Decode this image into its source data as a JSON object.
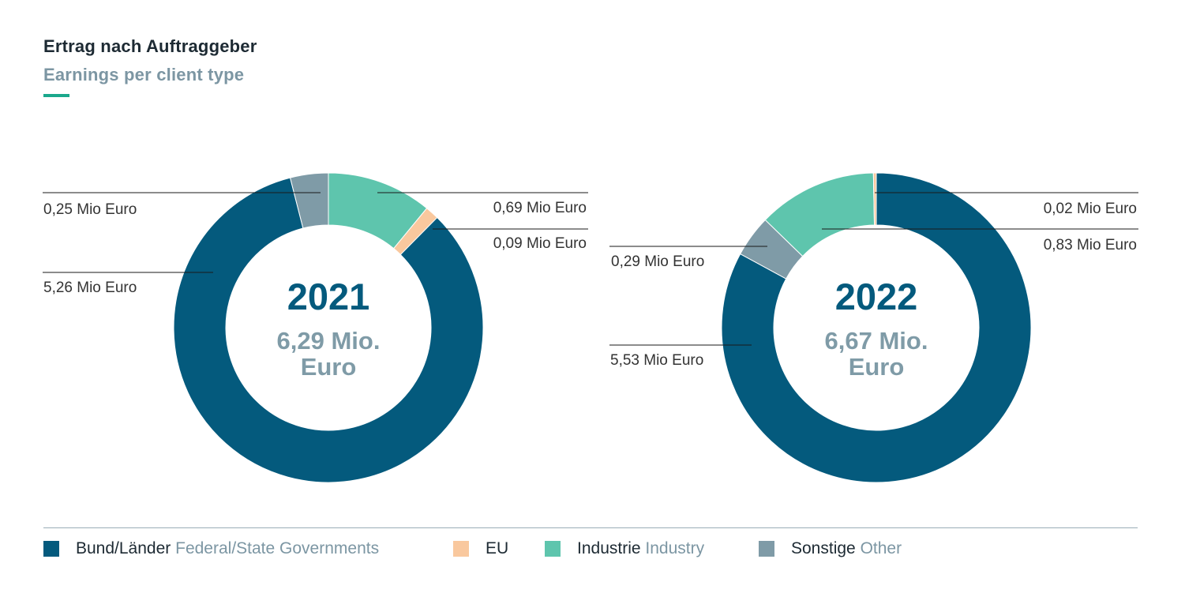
{
  "title": "Ertrag nach Auftraggeber",
  "subtitle": "Earnings per client type",
  "colors": {
    "accent": "#1aa88c",
    "bund_laender": "#045a7d",
    "eu": "#f9c89e",
    "industrie": "#5ec5ad",
    "sonstige": "#7f9ba7",
    "year_text": "#045a7d",
    "total_text": "#7f9ba7",
    "label_text": "#333333"
  },
  "legend": [
    {
      "de": "Bund/Länder",
      "en": "Federal/State Governments",
      "color": "#045a7d"
    },
    {
      "de": "EU",
      "en": "",
      "color": "#f9c89e"
    },
    {
      "de": "Industrie",
      "en": "Industry",
      "color": "#5ec5ad"
    },
    {
      "de": "Sonstige",
      "en": "Other",
      "color": "#7f9ba7"
    }
  ],
  "chart_data": [
    {
      "type": "pie",
      "year": "2021",
      "total_line1": "6,29 Mio.",
      "total_line2": "Euro",
      "categories": [
        "Bund/Länder",
        "EU",
        "Industrie",
        "Sonstige"
      ],
      "values": [
        5.26,
        0.09,
        0.69,
        0.25
      ],
      "value_labels": [
        "5,26 Mio Euro",
        "0,09 Mio Euro",
        "0,69 Mio Euro",
        "0,25 Mio Euro"
      ]
    },
    {
      "type": "pie",
      "year": "2022",
      "total_line1": "6,67 Mio.",
      "total_line2": "Euro",
      "categories": [
        "Bund/Länder",
        "EU",
        "Industrie",
        "Sonstige"
      ],
      "values": [
        5.53,
        0.02,
        0.83,
        0.29
      ],
      "value_labels": [
        "5,53 Mio Euro",
        "0,02 Mio Euro",
        "0,83 Mio Euro",
        "0,29 Mio Euro"
      ]
    }
  ]
}
